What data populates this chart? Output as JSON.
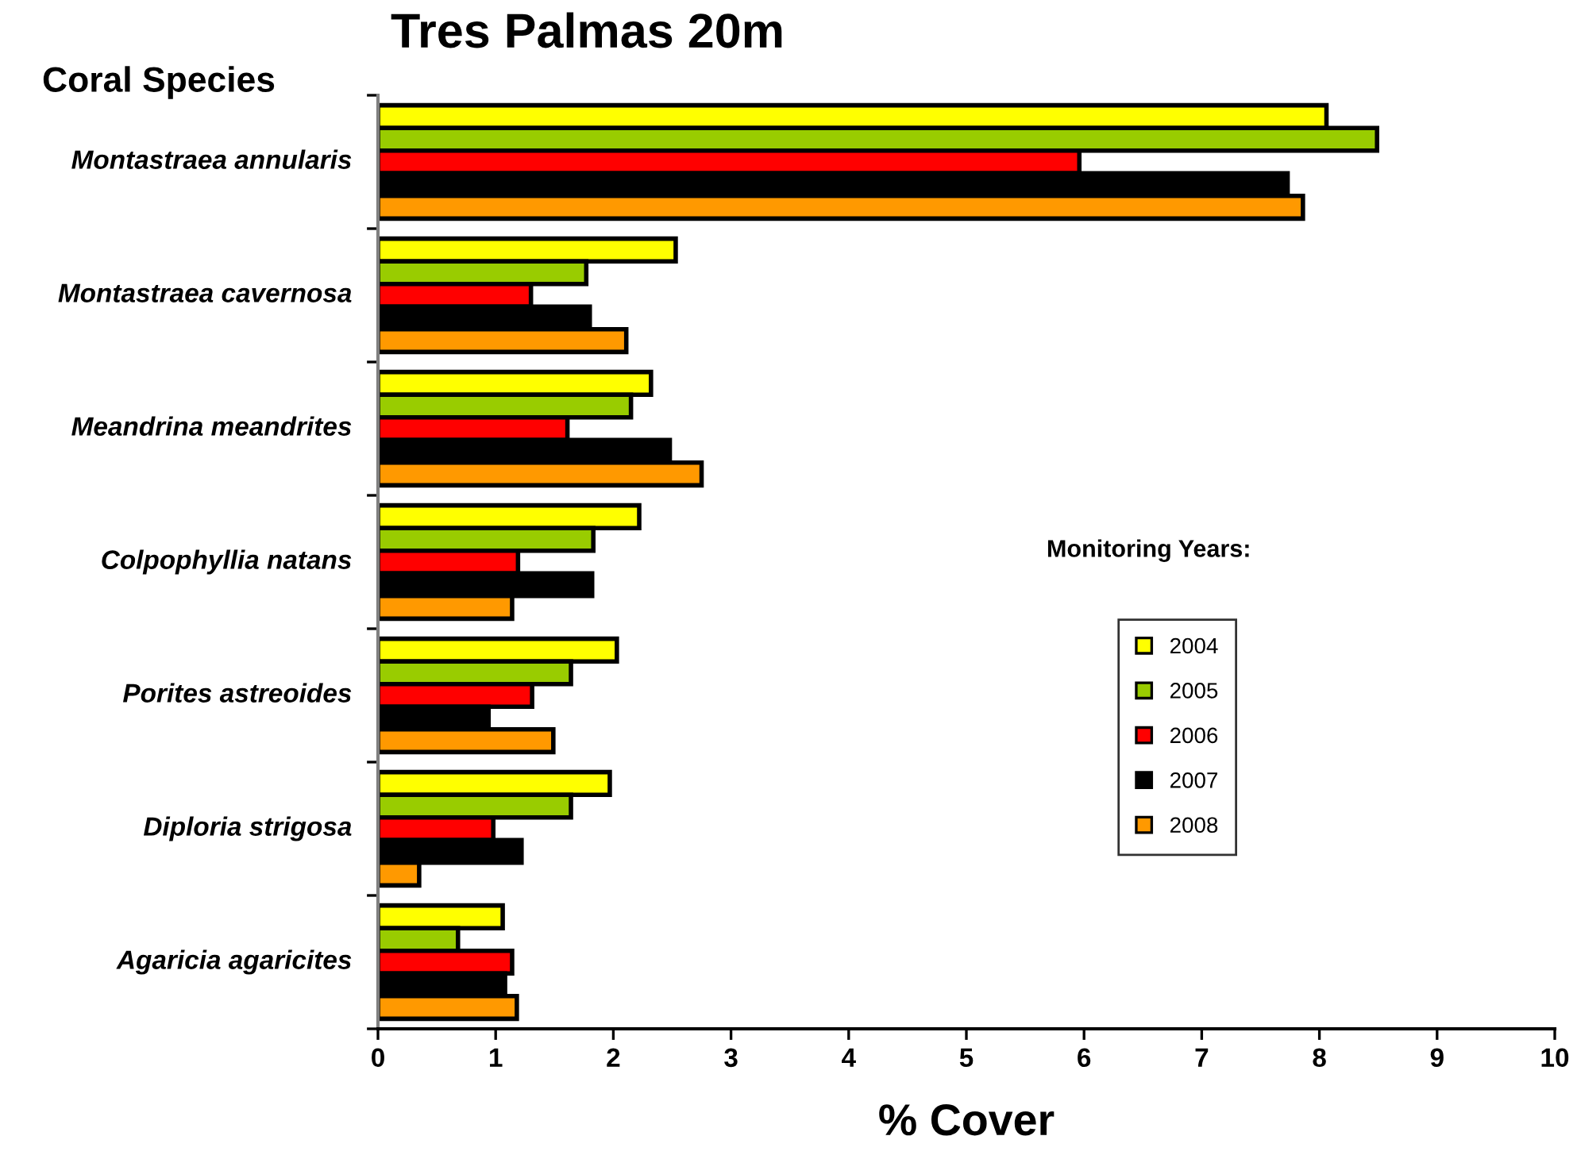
{
  "chart_data": {
    "type": "bar",
    "orientation": "horizontal",
    "title": "Tres Palmas 20m",
    "xlabel": "% Cover",
    "ylabel": "Coral Species",
    "legend_title": "Monitoring Years:",
    "categories": [
      "Montastraea annularis",
      "Montastraea cavernosa",
      "Meandrina meandrites",
      "Colpophyllia natans",
      "Porites astreoides",
      "Diploria strigosa",
      "Agaricia agaricites"
    ],
    "series": [
      {
        "name": "2004",
        "color": "#ffff00",
        "values": [
          8.06,
          2.53,
          2.32,
          2.22,
          2.03,
          1.97,
          1.06
        ]
      },
      {
        "name": "2005",
        "color": "#99cc00",
        "values": [
          8.49,
          1.77,
          2.15,
          1.83,
          1.64,
          1.64,
          0.68
        ]
      },
      {
        "name": "2006",
        "color": "#ff0000",
        "values": [
          5.96,
          1.3,
          1.61,
          1.19,
          1.31,
          0.98,
          1.14
        ]
      },
      {
        "name": "2007",
        "color": "#000000",
        "values": [
          7.73,
          1.8,
          2.48,
          1.82,
          0.94,
          1.22,
          1.08
        ]
      },
      {
        "name": "2008",
        "color": "#ff9900",
        "values": [
          7.86,
          2.11,
          2.75,
          1.14,
          1.49,
          0.35,
          1.18
        ]
      }
    ],
    "xlim": [
      0,
      10
    ],
    "xticks": [
      0,
      1,
      2,
      3,
      4,
      5,
      6,
      7,
      8,
      9,
      10
    ],
    "grid": false,
    "legend": "right"
  }
}
